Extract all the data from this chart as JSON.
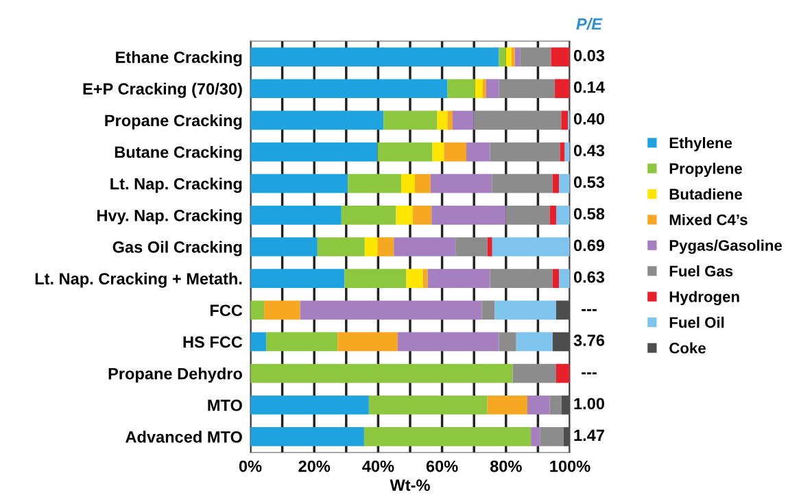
{
  "chart_data": {
    "type": "bar",
    "orientation": "horizontal",
    "stacked": true,
    "xlabel": "Wt-%",
    "categories": [
      "Ethane Cracking",
      "E+P Cracking (70/30)",
      "Propane Cracking",
      "Butane Cracking",
      "Lt. Nap. Cracking",
      "Hvy. Nap. Cracking",
      "Gas Oil Cracking",
      "Lt. Nap. Cracking + Metath.",
      "FCC",
      "HS FCC",
      "Propane Dehydro",
      "MTO",
      "Advanced MTO"
    ],
    "series": [
      {
        "name": "Ethylene",
        "color": "#1fa3e0",
        "values": [
          77.8,
          61.7,
          41.7,
          39.8,
          30.5,
          28.5,
          21.0,
          29.5,
          null,
          5.0,
          null,
          37.1,
          35.6
        ]
      },
      {
        "name": "Propylene",
        "color": "#8dc63f",
        "values": [
          2.2,
          8.6,
          16.8,
          17.2,
          16.7,
          17.1,
          14.8,
          19.3,
          4.3,
          22.3,
          82.1,
          37.1,
          52.2
        ]
      },
      {
        "name": "Butadiene",
        "color": "#ffe600",
        "values": [
          1.7,
          2.4,
          3.2,
          3.6,
          4.3,
          5.2,
          4.1,
          5.2,
          null,
          null,
          null,
          null,
          null
        ]
      },
      {
        "name": "Mixed C4’s",
        "color": "#f7a823",
        "values": [
          1.1,
          1.1,
          1.6,
          7.0,
          4.9,
          5.9,
          5.0,
          1.5,
          11.3,
          18.8,
          null,
          12.5,
          null
        ]
      },
      {
        "name": "Pygas/Gasoline",
        "color": "#a57fbf",
        "values": [
          1.6,
          4.0,
          6.6,
          7.4,
          19.2,
          23.2,
          19.3,
          19.5,
          56.8,
          31.7,
          null,
          7.0,
          2.8
        ]
      },
      {
        "name": "Fuel Gas",
        "color": "#8c8c8c",
        "values": [
          9.7,
          17.5,
          27.4,
          21.9,
          19.0,
          13.8,
          10.0,
          19.6,
          4.1,
          5.4,
          13.6,
          3.7,
          7.4
        ]
      },
      {
        "name": "Hydrogen",
        "color": "#e8202a",
        "values": [
          5.9,
          4.7,
          2.1,
          1.5,
          2.0,
          2.0,
          1.5,
          2.0,
          null,
          null,
          4.3,
          null,
          null
        ]
      },
      {
        "name": "Fuel Oil",
        "color": "#7fc4ec",
        "values": [
          null,
          null,
          0.6,
          1.6,
          3.4,
          4.3,
          24.3,
          3.4,
          19.2,
          11.4,
          null,
          null,
          null
        ]
      },
      {
        "name": "Coke",
        "color": "#4d4d4d",
        "values": [
          null,
          null,
          null,
          null,
          null,
          null,
          null,
          null,
          4.3,
          5.4,
          null,
          2.6,
          2.0
        ]
      }
    ],
    "xlim": [
      0,
      100
    ],
    "xticks": [
      {
        "value": 0,
        "label": "0%"
      },
      {
        "value": 10,
        "label": null
      },
      {
        "value": 20,
        "label": "20%"
      },
      {
        "value": 30,
        "label": null
      },
      {
        "value": 40,
        "label": "40%"
      },
      {
        "value": 50,
        "label": null
      },
      {
        "value": 60,
        "label": "60%"
      },
      {
        "value": 70,
        "label": null
      },
      {
        "value": 80,
        "label": "80%"
      },
      {
        "value": 90,
        "label": null
      },
      {
        "value": 100,
        "label": "100%"
      }
    ],
    "grid": "x",
    "legend": "right",
    "annotations": [
      "P/E",
      "0.03",
      "0.14",
      "0.40",
      "0.43",
      "0.53",
      "0.58",
      "0.69",
      "0.63",
      "---",
      "3.76",
      "---",
      "1.00",
      "1.47"
    ]
  }
}
